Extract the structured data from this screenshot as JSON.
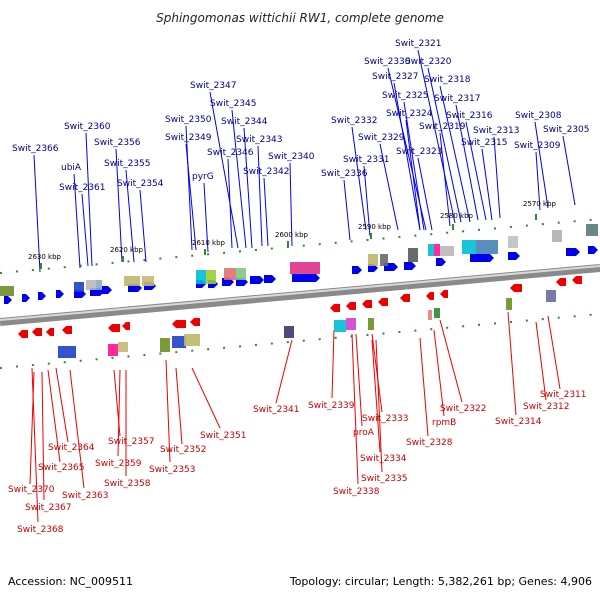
{
  "title": "Sphingomonas wittichii RW1, complete genome",
  "footer": {
    "accession": "Accession: NC_009511",
    "summary": "Topology: circular; Length: 5,382,261 bp; Genes: 4,906"
  },
  "colors": {
    "forward": "#0000ee",
    "reverse": "#ee0000",
    "top_label": "#00008b",
    "bottom_label": "#cc0000",
    "backbone": "#808080",
    "tick": "#2e8b2e"
  },
  "position_labels": [
    "2630 kbp",
    "2620 kbp",
    "2610 kbp",
    "2600 kbp",
    "2590 kbp",
    "2580 kbp",
    "2570 kbp"
  ],
  "top_labels": [
    "Swit_2321",
    "Swit_2330",
    "Swit_2320",
    "Swit_2327",
    "Swit_2318",
    "Swit_2347",
    "Swit_2325",
    "Swit_2317",
    "Swit_2345",
    "Swit_2324",
    "Swit_2308",
    "Swit_2316",
    "Swit_2350",
    "Swit_2332",
    "Swit_2344",
    "Swit_2319",
    "Swit_2305",
    "Swit_2360",
    "Swit_2313",
    "Swit_2349",
    "Swit_2329",
    "Swit_2343",
    "Swit_2356",
    "Swit_2315",
    "Swit_2309",
    "Swit_2366",
    "Swit_2346",
    "Swit_2323",
    "pyrG",
    "Swit_2340",
    "Swit_2355",
    "ubiA",
    "Swit_2331",
    "Swit_2342",
    "Swit_2336",
    "Swit_2354",
    "Swit_2361"
  ],
  "bottom_labels": [
    "Swit_2311",
    "Swit_2312",
    "Swit_2341",
    "Swit_2339",
    "Swit_2322",
    "Swit_2314",
    "Swit_2351",
    "Swit_2333",
    "proA",
    "rpmB",
    "Swit_2328",
    "Swit_2357",
    "Swit_2352",
    "Swit_2364",
    "Swit_2334",
    "Swit_2359",
    "Swit_2353",
    "Swit_2365",
    "Swit_2335",
    "Swit_2358",
    "Swit_2338",
    "Swit_2370",
    "Swit_2363",
    "Swit_2367",
    "Swit_2368"
  ]
}
